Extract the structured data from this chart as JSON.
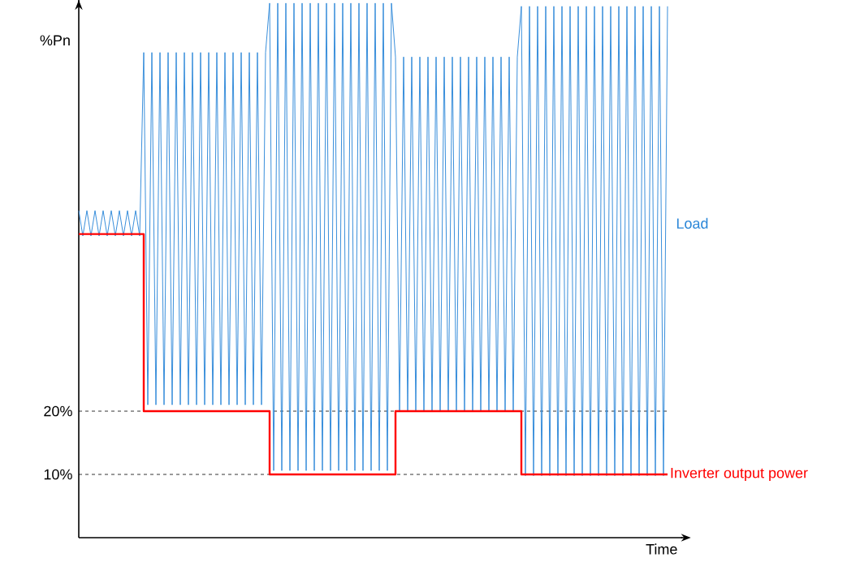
{
  "chart_data": {
    "type": "line",
    "xlabel": "Time",
    "ylabel": "%Pn",
    "categories": [
      null,
      null,
      null,
      null,
      null,
      null,
      null,
      null,
      null,
      null,
      null,
      null,
      null,
      null,
      null,
      null,
      null,
      null,
      null,
      null,
      null,
      null,
      null,
      null,
      null,
      null,
      null,
      null,
      null,
      null,
      null,
      null,
      null,
      null,
      null,
      null,
      null,
      null,
      null,
      null,
      null,
      null,
      null,
      null,
      null,
      null,
      null,
      null,
      null,
      null,
      null,
      null,
      null,
      null,
      null,
      null,
      null,
      null,
      null,
      null,
      null,
      null,
      null,
      null,
      null,
      null,
      null,
      null,
      null,
      null,
      null,
      null,
      null,
      null,
      null,
      null,
      null,
      null,
      null,
      null,
      null,
      null,
      null,
      null,
      null,
      null,
      null,
      null,
      null,
      null,
      null,
      null,
      null,
      null,
      null,
      null,
      null,
      null,
      null,
      null,
      null,
      null,
      null,
      null,
      null,
      null,
      null,
      null,
      null,
      null,
      null,
      null,
      null,
      null,
      null,
      null,
      null,
      null,
      null,
      null,
      null,
      null,
      null,
      null,
      null,
      null,
      null,
      null,
      null,
      null,
      null,
      null,
      null,
      null,
      null,
      null,
      null,
      null,
      null,
      null,
      null,
      null,
      null,
      null,
      null,
      null
    ],
    "series": [
      {
        "name": "Load",
        "color": "#2b87d8",
        "values": [
          51.7,
          47.7,
          51.7,
          47.7,
          51.7,
          47.7,
          51.7,
          47.7,
          51.7,
          47.7,
          51.7,
          47.7,
          51.7,
          47.7,
          51.7,
          47.7,
          76.7,
          21,
          76.7,
          21,
          76.7,
          21,
          76.7,
          21,
          76.7,
          21,
          76.7,
          21,
          76.7,
          21,
          76.7,
          21,
          76.7,
          21,
          76.7,
          21,
          76.7,
          21,
          76.7,
          21,
          76.7,
          21,
          76.7,
          21,
          76.7,
          21,
          76.7,
          84.5,
          10.6,
          84.5,
          10.6,
          84.5,
          10.6,
          84.5,
          10.6,
          84.5,
          10.6,
          84.5,
          10.6,
          84.5,
          10.6,
          84.5,
          10.6,
          84.5,
          10.6,
          84.5,
          10.6,
          84.5,
          10.6,
          84.5,
          10.6,
          84.5,
          10.6,
          84.5,
          10.6,
          84.5,
          10.6,
          84.5,
          76,
          20,
          76,
          20,
          76,
          20,
          76,
          20,
          76,
          20,
          76,
          20,
          76,
          20,
          76,
          20,
          76,
          20,
          76,
          20,
          76,
          20,
          76,
          20,
          76,
          20,
          76,
          20,
          76,
          20,
          76,
          84,
          9.8,
          84,
          9.8,
          84,
          9.8,
          84,
          9.8,
          84,
          9.8,
          84,
          9.8,
          84,
          9.8,
          84,
          9.8,
          84,
          9.8,
          84,
          9.8,
          84,
          9.8,
          84,
          9.8,
          84,
          9.8,
          84,
          9.8,
          84,
          9.8,
          84,
          9.8,
          84,
          9.8,
          84,
          9.8,
          84
        ]
      },
      {
        "name": "Inverter output power",
        "color": "#ff0000",
        "type": "step",
        "values": [
          48,
          48,
          48,
          48,
          48,
          48,
          48,
          48,
          48,
          48,
          48,
          48,
          48,
          48,
          48,
          48,
          20,
          20,
          20,
          20,
          20,
          20,
          20,
          20,
          20,
          20,
          20,
          20,
          20,
          20,
          20,
          20,
          20,
          20,
          20,
          20,
          20,
          20,
          20,
          20,
          20,
          20,
          20,
          20,
          20,
          20,
          20,
          10,
          10,
          10,
          10,
          10,
          10,
          10,
          10,
          10,
          10,
          10,
          10,
          10,
          10,
          10,
          10,
          10,
          10,
          10,
          10,
          10,
          10,
          10,
          10,
          10,
          10,
          10,
          10,
          10,
          10,
          10,
          20,
          20,
          20,
          20,
          20,
          20,
          20,
          20,
          20,
          20,
          20,
          20,
          20,
          20,
          20,
          20,
          20,
          20,
          20,
          20,
          20,
          20,
          20,
          20,
          20,
          20,
          20,
          20,
          20,
          20,
          20,
          10,
          10,
          10,
          10,
          10,
          10,
          10,
          10,
          10,
          10,
          10,
          10,
          10,
          10,
          10,
          10,
          10,
          10,
          10,
          10,
          10,
          10,
          10,
          10,
          10,
          10,
          10,
          10,
          10,
          10,
          10,
          10,
          10,
          10,
          10,
          10,
          10
        ]
      }
    ],
    "ylim": [
      0,
      85
    ],
    "yticks": [
      {
        "value": 20,
        "label": "20%"
      },
      {
        "value": 10,
        "label": "10%"
      }
    ],
    "ref_lines": [
      {
        "axis": "y",
        "value": 20,
        "color": "#000000",
        "line_style": "dashed"
      },
      {
        "axis": "y",
        "value": 10,
        "color": "#000000",
        "line_style": "dashed"
      }
    ],
    "marker": "none"
  }
}
